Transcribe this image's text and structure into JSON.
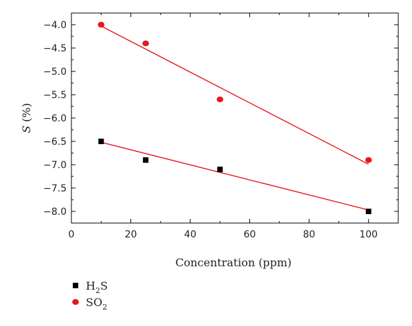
{
  "chart_data": {
    "type": "scatter",
    "xlabel": "Concentration (ppm)",
    "ylabel_prefix": "S",
    "ylabel_suffix": " (%)",
    "xlim": [
      0,
      110
    ],
    "ylim": [
      -8.25,
      -3.75
    ],
    "xticks": [
      0,
      20,
      40,
      60,
      80,
      100
    ],
    "yticks": [
      -4.0,
      -4.5,
      -5.0,
      -5.5,
      -6.0,
      -6.5,
      -7.0,
      -7.5,
      -8.0
    ],
    "xtick_labels": [
      "0",
      "20",
      "40",
      "60",
      "80",
      "100"
    ],
    "ytick_labels": [
      "−4.0",
      "−4.5",
      "−5.0",
      "−5.5",
      "−6.0",
      "−6.5",
      "−7.0",
      "−7.5",
      "−8.0"
    ],
    "grid": false,
    "legend_position": "bottom-left",
    "series": [
      {
        "name_parts": [
          "H",
          "2",
          "S"
        ],
        "marker": "square",
        "color": "#000000",
        "x": [
          10,
          25,
          50,
          100
        ],
        "y": [
          -6.5,
          -6.9,
          -7.1,
          -8.0
        ],
        "fit": {
          "x": [
            10,
            100
          ],
          "y": [
            -6.52,
            -7.97
          ]
        }
      },
      {
        "name_parts": [
          "SO",
          "2",
          ""
        ],
        "marker": "circle",
        "color": "#e8161b",
        "x": [
          10,
          25,
          50,
          100
        ],
        "y": [
          -4.0,
          -4.4,
          -5.6,
          -6.9
        ],
        "fit": {
          "x": [
            10,
            100
          ],
          "y": [
            -4.03,
            -6.99
          ]
        }
      }
    ]
  }
}
